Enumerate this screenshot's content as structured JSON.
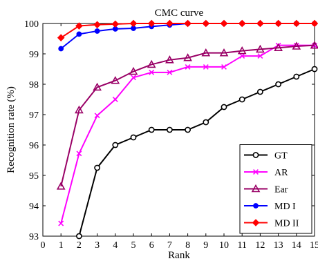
{
  "chart_data": {
    "type": "line",
    "title": "CMC curve",
    "xlabel": "Rank",
    "ylabel": "Recognition rate (%)",
    "xlim": [
      0,
      15
    ],
    "ylim": [
      93,
      100
    ],
    "xticks": [
      0,
      1,
      2,
      3,
      4,
      5,
      6,
      7,
      8,
      9,
      10,
      11,
      12,
      13,
      14,
      15
    ],
    "yticks": [
      93,
      94,
      95,
      96,
      97,
      98,
      99,
      100
    ],
    "grid": false,
    "legend_position": "bottom-right",
    "series": [
      {
        "name": "GT",
        "color": "#000000",
        "marker": "circle-open",
        "x": [
          2,
          3,
          4,
          5,
          6,
          7,
          8,
          9,
          10,
          11,
          12,
          13,
          14,
          15
        ],
        "values": [
          93.0,
          95.25,
          96.0,
          96.25,
          96.5,
          96.5,
          96.5,
          96.75,
          97.25,
          97.5,
          97.75,
          98.0,
          98.25,
          98.5
        ]
      },
      {
        "name": "AR",
        "color": "#ff00ff",
        "marker": "x",
        "x": [
          1,
          2,
          3,
          4,
          5,
          6,
          7,
          8,
          9,
          10,
          11,
          12,
          13,
          14,
          15
        ],
        "values": [
          93.42,
          95.72,
          96.97,
          97.5,
          98.22,
          98.39,
          98.39,
          98.57,
          98.57,
          98.57,
          98.93,
          98.93,
          99.28,
          99.28,
          99.28
        ]
      },
      {
        "name": "Ear",
        "color": "#990066",
        "marker": "triangle-open",
        "x": [
          1,
          2,
          3,
          4,
          5,
          6,
          7,
          8,
          9,
          10,
          11,
          12,
          13,
          14,
          15
        ],
        "values": [
          94.64,
          97.15,
          97.9,
          98.12,
          98.42,
          98.65,
          98.8,
          98.87,
          99.03,
          99.03,
          99.1,
          99.15,
          99.2,
          99.25,
          99.28
        ]
      },
      {
        "name": "MD I",
        "color": "#0000ff",
        "marker": "circle-filled",
        "x": [
          1,
          2,
          3,
          4,
          5,
          6,
          7,
          8,
          9,
          10,
          11,
          12,
          13,
          14,
          15
        ],
        "values": [
          99.17,
          99.65,
          99.75,
          99.82,
          99.84,
          99.9,
          99.95,
          100,
          100,
          100,
          100,
          100,
          100,
          100,
          100
        ]
      },
      {
        "name": "MD II",
        "color": "#ff0000",
        "marker": "diamond-filled",
        "x": [
          1,
          2,
          3,
          4,
          5,
          6,
          7,
          8,
          9,
          10,
          11,
          12,
          13,
          14,
          15
        ],
        "values": [
          99.53,
          99.92,
          99.96,
          99.98,
          100,
          100,
          100,
          100,
          100,
          100,
          100,
          100,
          100,
          100,
          100
        ]
      }
    ]
  }
}
